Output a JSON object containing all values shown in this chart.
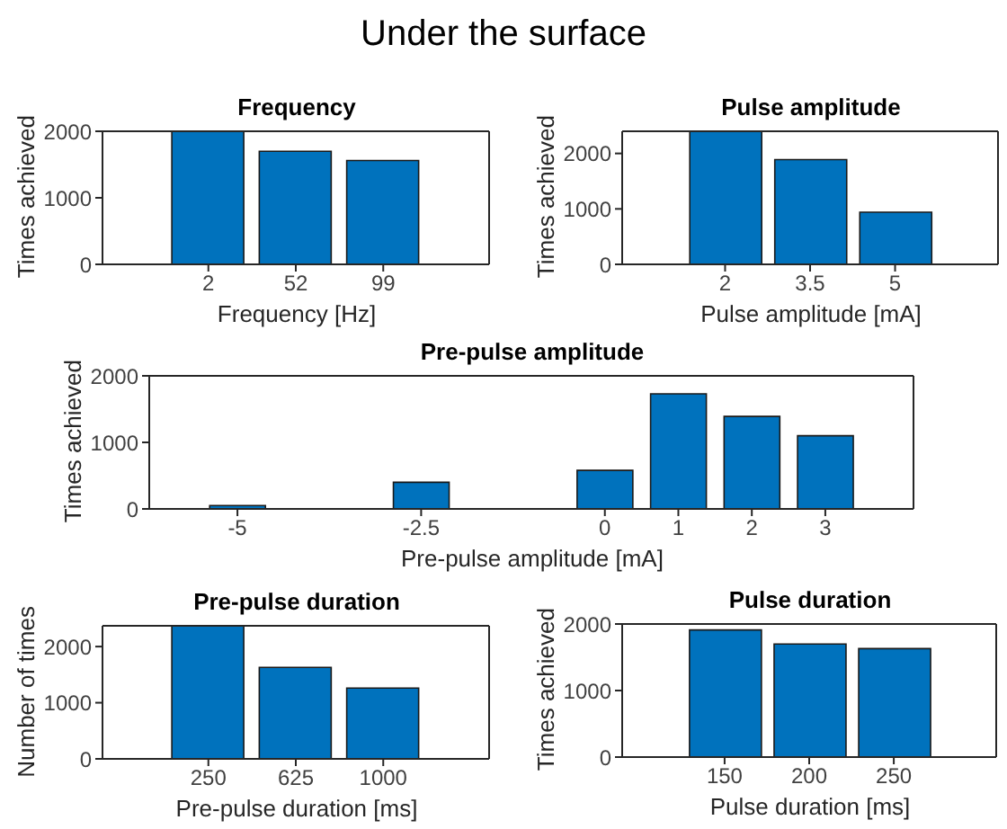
{
  "chart_data": [
    {
      "type": "other",
      "title": "Under the surface"
    },
    {
      "type": "bar",
      "title": "Frequency",
      "xlabel": "Frequency [Hz]",
      "ylabel": "Times achieved",
      "categories": [
        "2",
        "52",
        "99"
      ],
      "values": [
        2000,
        1700,
        1560
      ],
      "color": "#0072bd",
      "ylim": [
        0,
        2000
      ],
      "yticks": [
        0,
        1000,
        2000
      ],
      "grid": false
    },
    {
      "type": "bar",
      "title": "Pulse amplitude",
      "xlabel": "Pulse amplitude [mA]",
      "ylabel": "Times achieved",
      "categories": [
        "2",
        "3.5",
        "5"
      ],
      "values": [
        2400,
        1890,
        940
      ],
      "color": "#0072bd",
      "ylim": [
        0,
        2400
      ],
      "yticks": [
        0,
        1000,
        2000
      ],
      "grid": false
    },
    {
      "type": "bar",
      "title": "Pre-pulse amplitude",
      "xlabel": "Pre-pulse amplitude [mA]",
      "ylabel": "Times achieved",
      "x": [
        -5,
        -2.5,
        0,
        1,
        2,
        3
      ],
      "values": [
        50,
        400,
        580,
        1730,
        1390,
        1100
      ],
      "color": "#0072bd",
      "xlim": [
        -6.2,
        4.2
      ],
      "xticks": [
        -5,
        -2.5,
        0,
        1,
        2,
        3
      ],
      "ylim": [
        0,
        2000
      ],
      "yticks": [
        0,
        1000,
        2000
      ],
      "grid": false
    },
    {
      "type": "bar",
      "title": "Pre-pulse duration",
      "xlabel": "Pre-pulse duration [ms]",
      "ylabel": "Number of times",
      "categories": [
        "250",
        "625",
        "1000"
      ],
      "values": [
        2370,
        1630,
        1260
      ],
      "color": "#0072bd",
      "ylim": [
        0,
        2370
      ],
      "yticks": [
        0,
        1000,
        2000
      ],
      "grid": false
    },
    {
      "type": "bar",
      "title": "Pulse duration",
      "xlabel": "Pulse duration [ms]",
      "ylabel": "Times achieved",
      "categories": [
        "150",
        "200",
        "250"
      ],
      "values": [
        1910,
        1700,
        1630
      ],
      "color": "#0072bd",
      "ylim": [
        0,
        2000
      ],
      "yticks": [
        0,
        1000,
        2000
      ],
      "grid": false
    }
  ]
}
